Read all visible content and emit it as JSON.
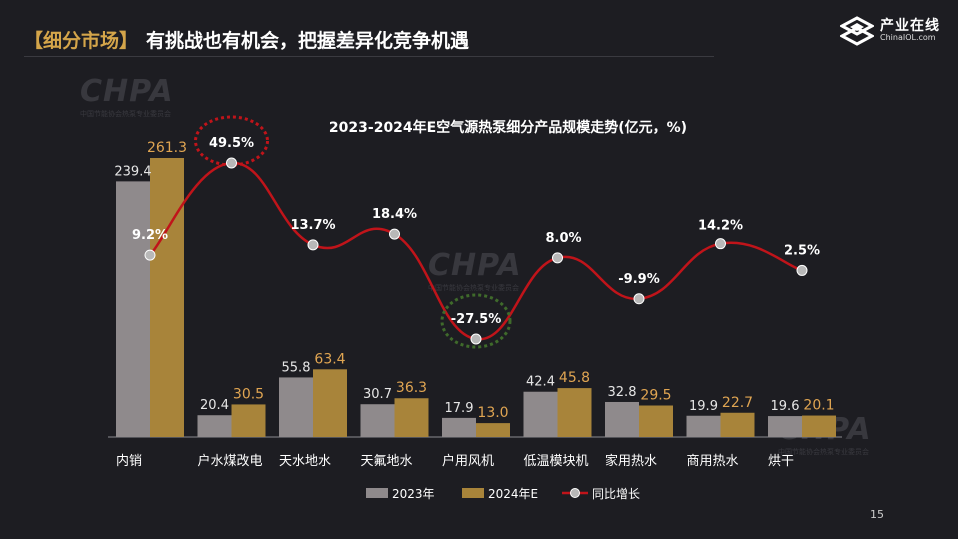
{
  "header": {
    "tag": "【细分市场】",
    "title": "有挑战也有机会，把握差异化竞争机遇"
  },
  "logo": {
    "cn": "产业在线",
    "en": "ChinaIOL.com"
  },
  "watermark": {
    "brand": "CHPA",
    "org": "中国节能协会热泵专业委员会"
  },
  "page_number": "15",
  "chart_data": {
    "type": "bar",
    "title": "2023-2024年E空气源热泵细分产品规模走势(亿元，%)",
    "categories": [
      "内销",
      "户水煤改电",
      "天水地水",
      "天氟地水",
      "户用风机",
      "低温模块机",
      "家用热水",
      "商用热水",
      "烘干"
    ],
    "series": [
      {
        "name": "2023年",
        "type": "bar",
        "values": [
          239.4,
          20.4,
          55.8,
          30.7,
          17.9,
          42.4,
          32.8,
          19.9,
          19.6
        ],
        "color": "#8f8a8c",
        "value_labels": [
          "239.4",
          "20.4",
          "55.8",
          "30.7",
          "17.9",
          "42.4",
          "32.8",
          "19.9",
          "19.6"
        ]
      },
      {
        "name": "2024年E",
        "type": "bar",
        "values": [
          261.3,
          30.5,
          63.4,
          36.3,
          13.0,
          45.8,
          29.5,
          22.7,
          20.1
        ],
        "color": "#a8843a",
        "value_labels": [
          "261.3",
          "30.5",
          "63.4",
          "36.3",
          "13.0",
          "45.8",
          "29.5",
          "22.7",
          "20.1"
        ]
      },
      {
        "name": "同比增长",
        "type": "line",
        "values": [
          9.2,
          49.5,
          13.7,
          18.4,
          -27.5,
          8.0,
          -9.9,
          14.2,
          2.5
        ],
        "color": "#c0141a",
        "value_labels": [
          "9.2%",
          "49.5%",
          "13.7%",
          "18.4%",
          "-27.5%",
          "8.0%",
          "-9.9%",
          "14.2%",
          "2.5%"
        ]
      }
    ],
    "highlight": {
      "max_index": 1,
      "min_index": 4,
      "max_color": "#c0141a",
      "min_color": "#3f6a2b"
    },
    "legend_position": "bottom",
    "grid": false
  }
}
